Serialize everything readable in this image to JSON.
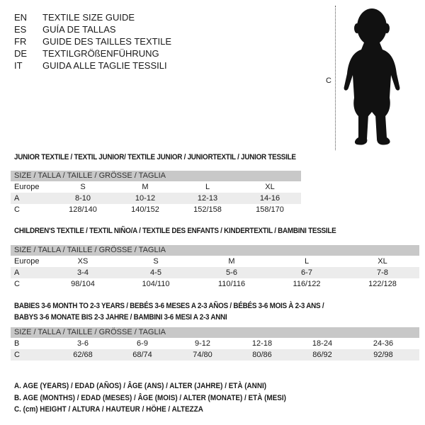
{
  "header": {
    "codes": [
      "EN",
      "ES",
      "FR",
      "DE",
      "IT"
    ],
    "titles": [
      "TEXTILE SIZE GUIDE",
      "GUÍA DE TALLAS",
      "GUIDE DES TAILLES TEXTILE",
      "TEXTILGRÖßENFÜHRUNG",
      "GUIDA ALLE TAGLIE TESSILI"
    ]
  },
  "figure": {
    "label": "C"
  },
  "junior": {
    "title": "JUNIOR TEXTILE / TEXTIL JUNIOR/ TEXTILE JUNIOR / JUNIORTEXTIL / JUNIOR TESSILE",
    "header": "SIZE / TALLA / TAILLE / GRÖSSE / TAGLIA",
    "rows": [
      {
        "label": "Europe",
        "values": [
          "S",
          "M",
          "L",
          "XL"
        ]
      },
      {
        "label": "A",
        "values": [
          "8-10",
          "10-12",
          "12-13",
          "14-16"
        ]
      },
      {
        "label": "C",
        "values": [
          "128/140",
          "140/152",
          "152/158",
          "158/170"
        ]
      }
    ]
  },
  "children": {
    "title": "CHILDREN'S TEXTILE / TEXTIL NIÑO/A / TEXTILE DES ENFANTS / KINDERTEXTIL / BAMBINI TESSILE",
    "header": "SIZE / TALLA / TAILLE / GRÖSSE / TAGLIA",
    "rows": [
      {
        "label": "Europe",
        "values": [
          "XS",
          "S",
          "M",
          "L",
          "XL"
        ]
      },
      {
        "label": "A",
        "values": [
          "3-4",
          "4-5",
          "5-6",
          "6-7",
          "7-8"
        ]
      },
      {
        "label": "C",
        "values": [
          "98/104",
          "104/110",
          "110/116",
          "116/122",
          "122/128"
        ]
      }
    ]
  },
  "babies": {
    "title1": "BABIES 3-6 MONTH TO 2-3 YEARS / BEBÉS 3-6 MESES A 2-3 AÑOS / BÉBÉS 3-6 MOIS À 2-3 ANS /",
    "title2": "BABYS 3-6 MONATE BIS 2-3 JAHRE / BAMBINI 3-6 MESI A 2-3 ANNI",
    "header": "SIZE / TALLA / TAILLE / GRÖSSE / TAGLIA",
    "rows": [
      {
        "label": "B",
        "values": [
          "3-6",
          "6-9",
          "9-12",
          "12-18",
          "18-24",
          "24-36"
        ]
      },
      {
        "label": "C",
        "values": [
          "62/68",
          "68/74",
          "74/80",
          "80/86",
          "86/92",
          "92/98"
        ]
      }
    ]
  },
  "legend": [
    "A. AGE (YEARS) / EDAD (AÑOS) / ÂGE (ANS) / ALTER (JAHRE) / ETÀ (ANNI)",
    "B. AGE (MONTHS) / EDAD (MESES) / ÂGE (MOIS) / ALTER (MONATE) / ETÀ (MESI)",
    "C. (cm) HEIGHT / ALTURA / HAUTEUR / HÖHE / ALTEZZA"
  ]
}
